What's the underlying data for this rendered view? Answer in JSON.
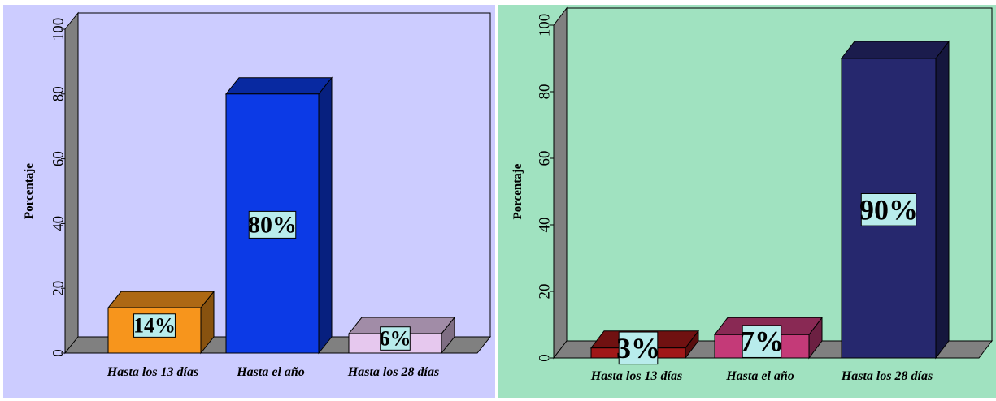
{
  "colors": {
    "panel_left_bg": "#ccccff",
    "panel_right_bg": "#a0e2c0",
    "wall_side": "#808080",
    "floor": "#808080",
    "label_box": "#b8ecec"
  },
  "chart_data": [
    {
      "type": "bar",
      "title": "",
      "xlabel": "",
      "ylabel": "Porcentaje",
      "ylim": [
        0,
        100
      ],
      "yticks": [
        0,
        20,
        40,
        60,
        80,
        100
      ],
      "grid": false,
      "legend": "none",
      "categories": [
        "Hasta los 13 días",
        "Hasta el año",
        "Hasta los 28 días"
      ],
      "values": [
        14,
        80,
        6
      ],
      "data_labels": [
        "14%",
        "80%",
        "6%"
      ],
      "bar_colors": [
        "#f7951c",
        "#0c3ae6",
        "#e6c8ee"
      ]
    },
    {
      "type": "bar",
      "title": "",
      "xlabel": "",
      "ylabel": "Porcentaje",
      "ylim": [
        0,
        100
      ],
      "yticks": [
        0,
        20,
        40,
        60,
        80,
        100
      ],
      "grid": false,
      "legend": "none",
      "categories": [
        "Hasta los 13 días",
        "Hasta el año",
        "Hasta los 28 días"
      ],
      "values": [
        3,
        7,
        90
      ],
      "data_labels": [
        "3%",
        "7%",
        "90%"
      ],
      "bar_colors": [
        "#a01818",
        "#c43a78",
        "#26286e"
      ]
    }
  ]
}
